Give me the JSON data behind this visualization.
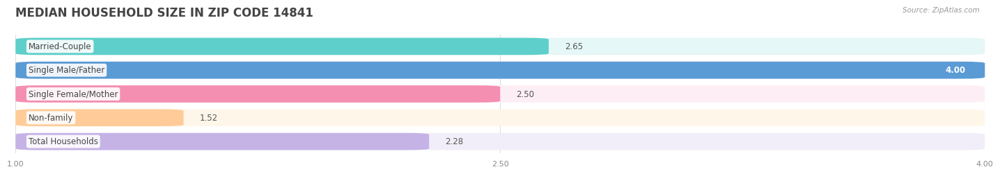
{
  "title": "MEDIAN HOUSEHOLD SIZE IN ZIP CODE 14841",
  "source": "Source: ZipAtlas.com",
  "categories": [
    "Married-Couple",
    "Single Male/Father",
    "Single Female/Mother",
    "Non-family",
    "Total Households"
  ],
  "values": [
    2.65,
    4.0,
    2.5,
    1.52,
    2.28
  ],
  "bar_colors": [
    "#5ECFCA",
    "#5B9BD5",
    "#F48FB1",
    "#FFCC99",
    "#C5B3E6"
  ],
  "bar_bg_colors": [
    "#E5F7F6",
    "#E8F2FB",
    "#FDEEF5",
    "#FFF6EA",
    "#F2EEF9"
  ],
  "xlim": [
    1.0,
    4.0
  ],
  "xticks": [
    1.0,
    2.5,
    4.0
  ],
  "xtick_labels": [
    "1.00",
    "2.50",
    "4.00"
  ],
  "bar_height": 0.72,
  "bar_gap": 0.28,
  "label_fontsize": 8.5,
  "value_fontsize": 8.5,
  "title_fontsize": 12,
  "fig_bg": "#FFFFFF",
  "text_color": "#555555",
  "title_color": "#444444",
  "source_color": "#999999",
  "grid_color": "#DDDDDD"
}
